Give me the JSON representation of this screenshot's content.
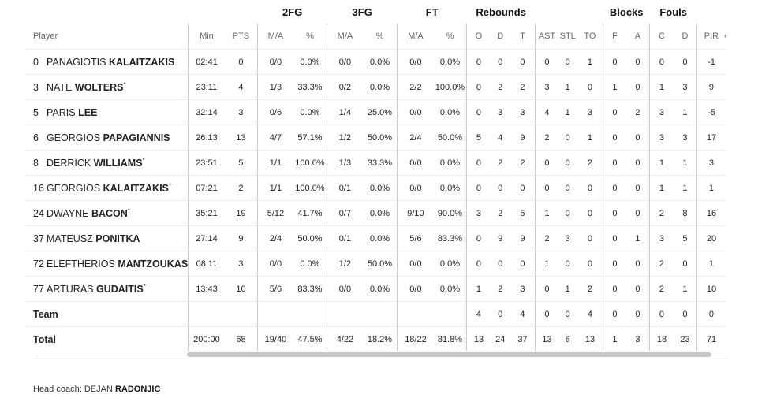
{
  "groups": {
    "fg2": "2FG",
    "fg3": "3FG",
    "ft": "FT",
    "rebounds": "Rebounds",
    "blocks": "Blocks",
    "fouls": "Fouls"
  },
  "headers": [
    "Player",
    "Min",
    "PTS",
    "M/A",
    "%",
    "M/A",
    "%",
    "M/A",
    "%",
    "O",
    "D",
    "T",
    "AST",
    "STL",
    "TO",
    "F",
    "A",
    "C",
    "D",
    "PIR"
  ],
  "expand_icon": "+",
  "players": [
    {
      "num": "0",
      "first": "PANAGIOTIS",
      "last": "KALAITZAKIS",
      "starter": false,
      "stats": [
        "02:41",
        "0",
        "0/0",
        "0.0%",
        "0/0",
        "0.0%",
        "0/0",
        "0.0%",
        "0",
        "0",
        "0",
        "0",
        "0",
        "1",
        "0",
        "0",
        "0",
        "0",
        "-1"
      ]
    },
    {
      "num": "3",
      "first": "NATE",
      "last": "WOLTERS",
      "starter": true,
      "stats": [
        "23:11",
        "4",
        "1/3",
        "33.3%",
        "0/2",
        "0.0%",
        "2/2",
        "100.0%",
        "0",
        "2",
        "2",
        "3",
        "1",
        "0",
        "1",
        "0",
        "1",
        "3",
        "9"
      ]
    },
    {
      "num": "5",
      "first": "PARIS",
      "last": "LEE",
      "starter": false,
      "stats": [
        "32:14",
        "3",
        "0/6",
        "0.0%",
        "1/4",
        "25.0%",
        "0/0",
        "0.0%",
        "0",
        "3",
        "3",
        "4",
        "1",
        "3",
        "0",
        "2",
        "3",
        "1",
        "-5"
      ]
    },
    {
      "num": "6",
      "first": "GEORGIOS",
      "last": "PAPAGIANNIS",
      "starter": false,
      "stats": [
        "26:13",
        "13",
        "4/7",
        "57.1%",
        "1/2",
        "50.0%",
        "2/4",
        "50.0%",
        "5",
        "4",
        "9",
        "2",
        "0",
        "1",
        "0",
        "0",
        "3",
        "3",
        "17"
      ]
    },
    {
      "num": "8",
      "first": "DERRICK",
      "last": "WILLIAMS",
      "starter": true,
      "stats": [
        "23:51",
        "5",
        "1/1",
        "100.0%",
        "1/3",
        "33.3%",
        "0/0",
        "0.0%",
        "0",
        "2",
        "2",
        "0",
        "0",
        "2",
        "0",
        "0",
        "1",
        "1",
        "3"
      ]
    },
    {
      "num": "16",
      "first": "GEORGIOS",
      "last": "KALAITZAKIS",
      "starter": true,
      "stats": [
        "07:21",
        "2",
        "1/1",
        "100.0%",
        "0/1",
        "0.0%",
        "0/0",
        "0.0%",
        "0",
        "0",
        "0",
        "0",
        "0",
        "0",
        "0",
        "0",
        "1",
        "1",
        "1"
      ]
    },
    {
      "num": "24",
      "first": "DWAYNE",
      "last": "BACON",
      "starter": true,
      "stats": [
        "35:21",
        "19",
        "5/12",
        "41.7%",
        "0/7",
        "0.0%",
        "9/10",
        "90.0%",
        "3",
        "2",
        "5",
        "1",
        "0",
        "0",
        "0",
        "0",
        "2",
        "8",
        "16"
      ]
    },
    {
      "num": "37",
      "first": "MATEUSZ",
      "last": "PONITKA",
      "starter": false,
      "stats": [
        "27:14",
        "9",
        "2/4",
        "50.0%",
        "0/1",
        "0.0%",
        "5/6",
        "83.3%",
        "0",
        "9",
        "9",
        "2",
        "3",
        "0",
        "0",
        "1",
        "3",
        "5",
        "20"
      ]
    },
    {
      "num": "72",
      "first": "ELEFTHERIOS",
      "last": "MANTZOUKAS",
      "starter": false,
      "stats": [
        "08:11",
        "3",
        "0/0",
        "0.0%",
        "1/2",
        "50.0%",
        "0/0",
        "0.0%",
        "0",
        "0",
        "0",
        "1",
        "0",
        "0",
        "0",
        "0",
        "2",
        "0",
        "1"
      ]
    },
    {
      "num": "77",
      "first": "ARTURAS",
      "last": "GUDAITIS",
      "starter": true,
      "stats": [
        "13:43",
        "10",
        "5/6",
        "83.3%",
        "0/0",
        "0.0%",
        "0/0",
        "0.0%",
        "1",
        "2",
        "3",
        "0",
        "1",
        "2",
        "0",
        "0",
        "2",
        "1",
        "10"
      ]
    }
  ],
  "team": {
    "label": "Team",
    "stats": [
      "",
      "",
      "",
      "",
      "",
      "",
      "",
      "",
      "4",
      "0",
      "4",
      "0",
      "0",
      "4",
      "0",
      "0",
      "0",
      "0",
      "0"
    ]
  },
  "total": {
    "label": "Total",
    "stats": [
      "200:00",
      "68",
      "19/40",
      "47.5%",
      "4/22",
      "18.2%",
      "18/22",
      "81.8%",
      "13",
      "24",
      "37",
      "13",
      "6",
      "13",
      "1",
      "3",
      "18",
      "23",
      "71"
    ]
  },
  "coach": {
    "label": "Head coach:",
    "first": "DEJAN",
    "last": "RADONJIC"
  }
}
